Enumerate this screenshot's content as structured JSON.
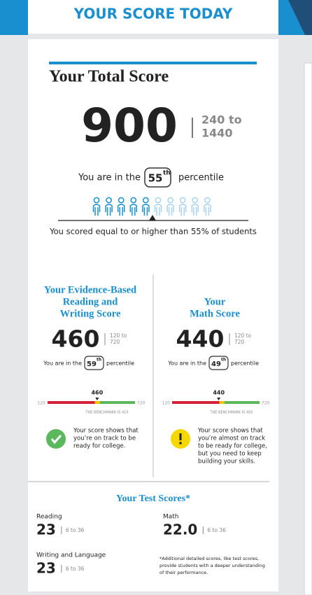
{
  "header": {
    "title": "YOUR SCORE TODAY"
  },
  "total_score": {
    "title": "Your Total Score",
    "score": 900,
    "range": [
      "240 to",
      "1440"
    ],
    "percentile_prefix": "You are in the",
    "percentile": 55,
    "ordinal": "th",
    "percentile_word": "percentile",
    "summary": "You scored equal to or higher than 55% of students"
  },
  "sections": [
    {
      "title": [
        "Your Evidence-Based",
        "Reading and",
        "Writing Score"
      ],
      "score": 460,
      "range": [
        "120 to",
        "720"
      ],
      "percentile_prefix": "You are in the",
      "percentile": 59,
      "ordinal": "th",
      "percentile_word": "percentile",
      "scale_min": 120,
      "scale_max": 720,
      "benchmark": "THE BENCHMARK IS 410",
      "status": "on-track",
      "message": [
        "Your score shows that",
        "you’re on track to be",
        "ready for college."
      ]
    },
    {
      "title": [
        "Your",
        "Math Score"
      ],
      "score": 440,
      "range": [
        "120 to",
        "720"
      ],
      "percentile_prefix": "You are in the",
      "percentile": 49,
      "ordinal": "th",
      "percentile_word": "percentile",
      "scale_min": 120,
      "scale_max": 720,
      "benchmark": "THE BENCHMARK IS 450",
      "status": "almost",
      "message": [
        "Your score shows that",
        "you’re almost on track",
        "to be ready for college,",
        "but you need to keep",
        "building your skills."
      ]
    }
  ],
  "test_scores": {
    "title": "Your Test Scores*",
    "items": [
      {
        "label": "Reading",
        "score": "23",
        "range": "6 to 36"
      },
      {
        "label": "Math",
        "score": "22.0",
        "range": "6 to 36"
      },
      {
        "label": "Writing and Language",
        "score": "23",
        "range": "6 to 36"
      }
    ],
    "footnote": [
      "*Additional detailed scores, like test scores,",
      "provide students with a deeper understanding",
      "of their performance."
    ]
  }
}
